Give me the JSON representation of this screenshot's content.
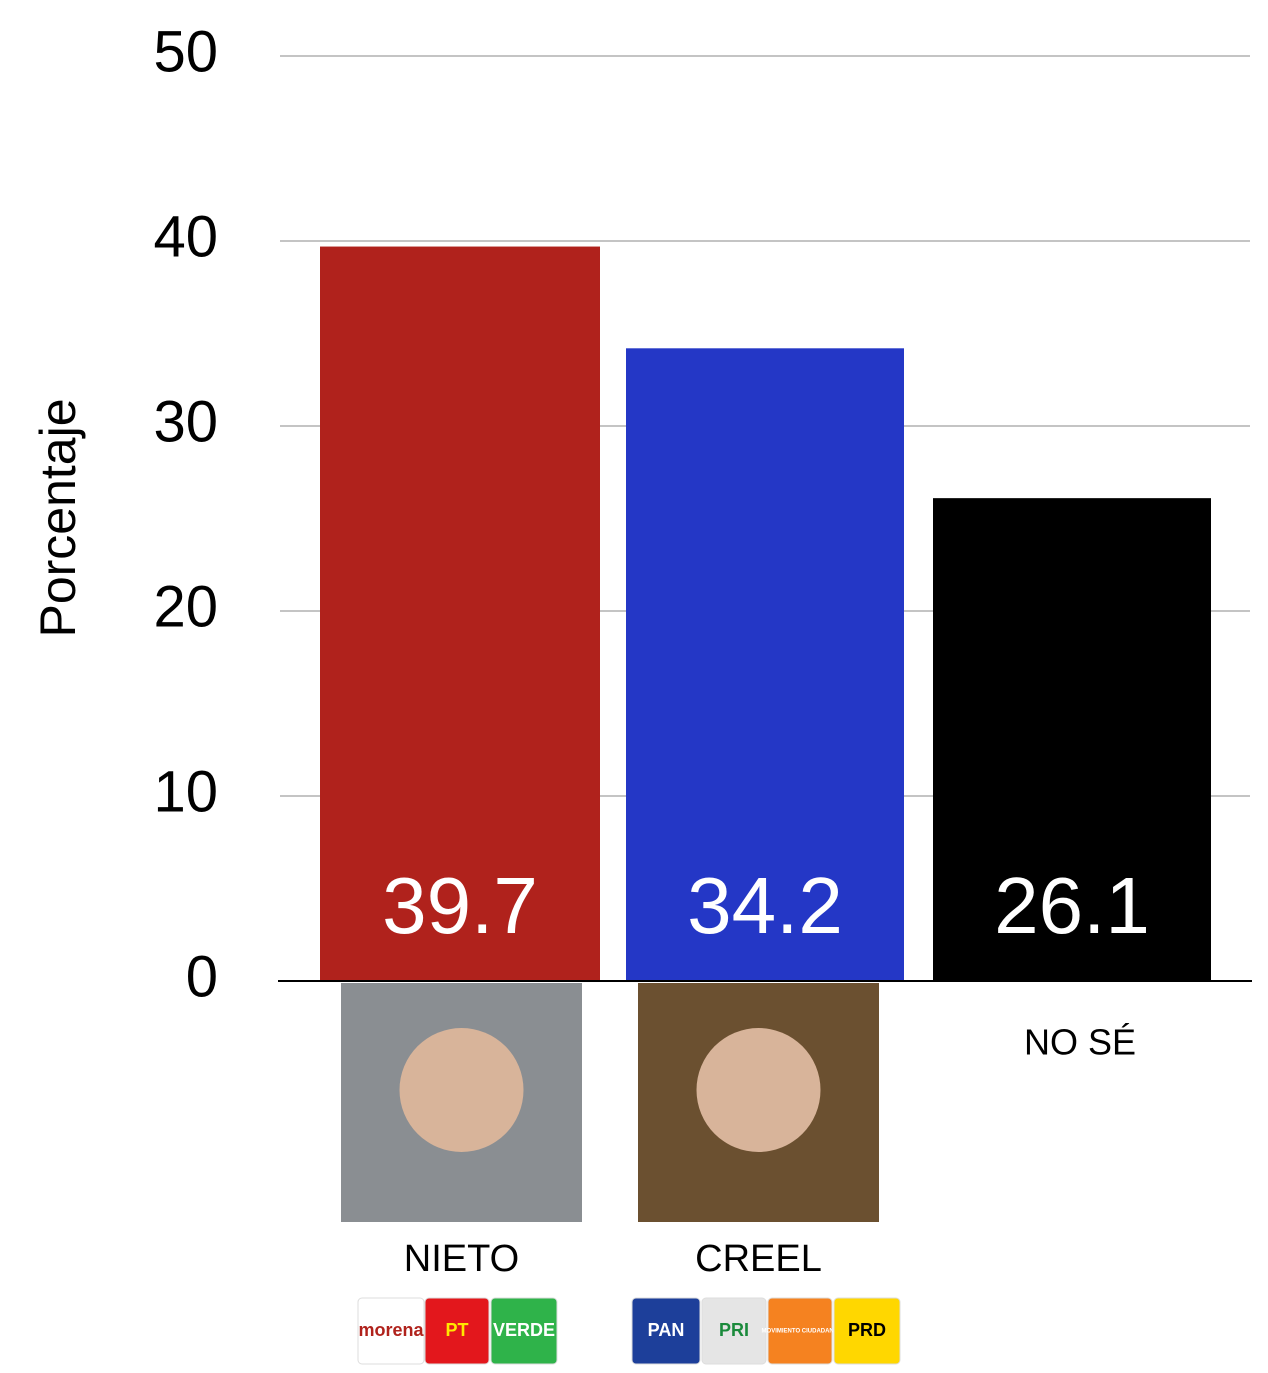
{
  "chart_data": {
    "type": "bar",
    "y_label": "Porcentaje",
    "categories": [
      "NIETO",
      "CREEL",
      "NO SÉ"
    ],
    "values": [
      39.7,
      34.2,
      26.1
    ],
    "colors": [
      "#b0221c",
      "#2437c6",
      "#000000"
    ],
    "ylim": [
      0,
      50
    ],
    "yticks": [
      0,
      10,
      20,
      30,
      40,
      50
    ],
    "grid": true,
    "category_logos": [
      [
        "morena",
        "PT",
        "VERDE"
      ],
      [
        "PAN",
        "PRI",
        "MOVIMIENTO CIUDADANO",
        "PRD"
      ]
    ]
  }
}
